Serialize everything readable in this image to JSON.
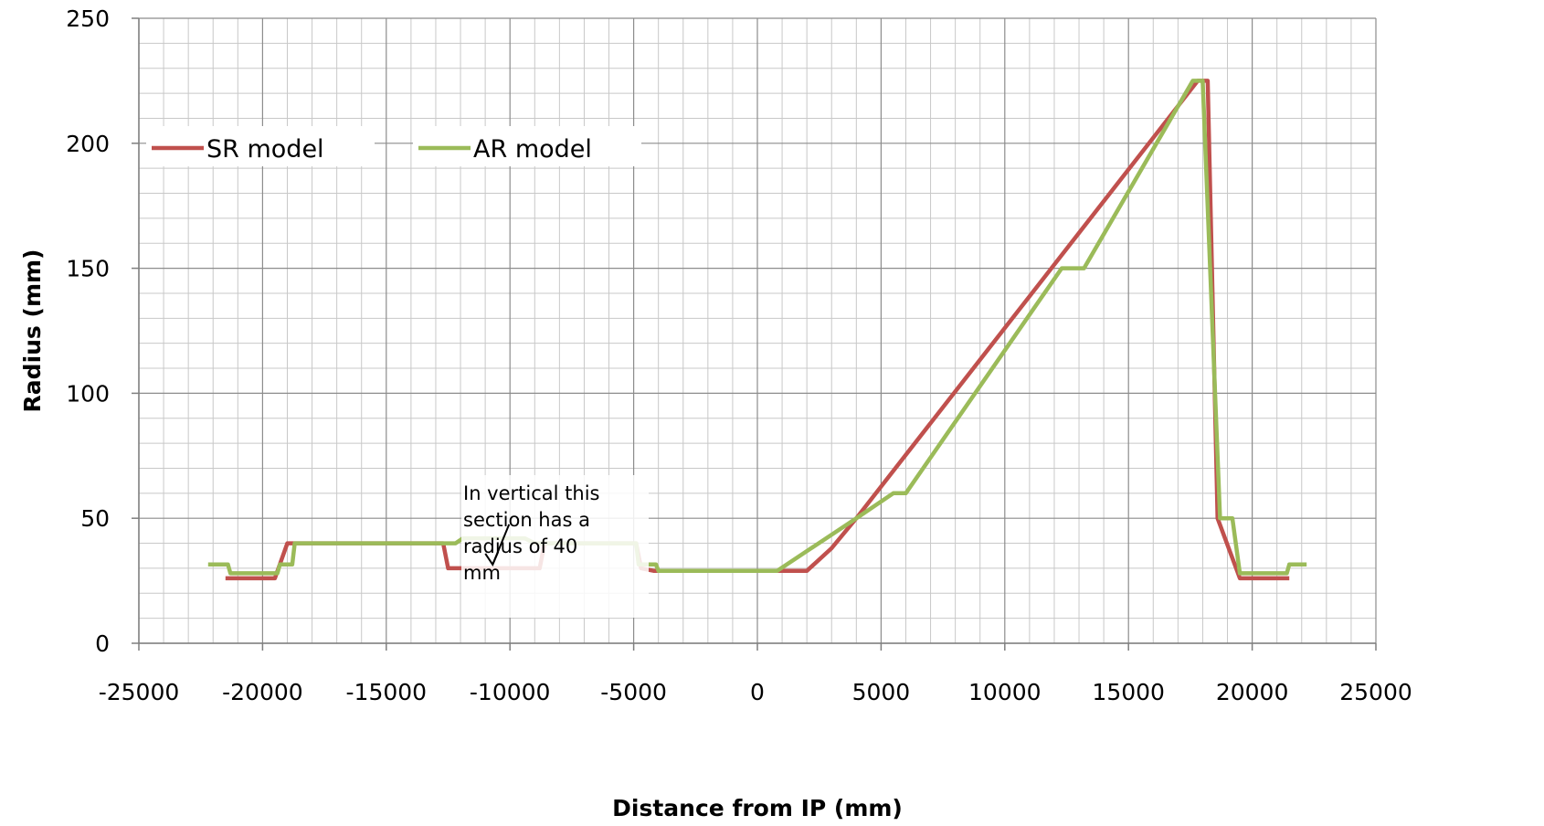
{
  "chart_data": {
    "type": "line",
    "title": "",
    "xlabel": "Distance from IP (mm)",
    "ylabel": "Radius (mm)",
    "xlim": [
      -25000,
      25000
    ],
    "ylim": [
      0,
      250
    ],
    "x_ticks": [
      -25000,
      -20000,
      -15000,
      -10000,
      -5000,
      0,
      5000,
      10000,
      15000,
      20000,
      25000
    ],
    "y_ticks": [
      0,
      50,
      100,
      150,
      200,
      250
    ],
    "x_ticks_labels": [
      "-25000",
      "-20000",
      "-15000",
      "-10000",
      "-5000",
      "0",
      "5000",
      "10000",
      "15000",
      "20000",
      "25000"
    ],
    "y_ticks_labels": [
      "0",
      "50",
      "100",
      "150",
      "200",
      "250"
    ],
    "grid": true,
    "legend_position": "top-left",
    "series": [
      {
        "name": "SR model",
        "color": "#c0504d",
        "points": [
          [
            -21500,
            26
          ],
          [
            -19500,
            26
          ],
          [
            -19000,
            40
          ],
          [
            -12700,
            40
          ],
          [
            -12500,
            30
          ],
          [
            -8800,
            30
          ],
          [
            -8600,
            40
          ],
          [
            -4900,
            40
          ],
          [
            -4700,
            30
          ],
          [
            -4200,
            29
          ],
          [
            2000,
            29
          ],
          [
            3000,
            38
          ],
          [
            4000,
            50
          ],
          [
            17800,
            225
          ],
          [
            18200,
            225
          ],
          [
            18600,
            50
          ],
          [
            19500,
            26
          ],
          [
            21500,
            26
          ]
        ]
      },
      {
        "name": "AR model",
        "color": "#9bbb59",
        "points": [
          [
            -22200,
            31.5
          ],
          [
            -21400,
            31.5
          ],
          [
            -21300,
            28
          ],
          [
            -19400,
            28
          ],
          [
            -19300,
            31.5
          ],
          [
            -18800,
            31.5
          ],
          [
            -18700,
            40
          ],
          [
            -12200,
            40
          ],
          [
            -11900,
            42
          ],
          [
            -9400,
            42
          ],
          [
            -9000,
            40
          ],
          [
            -4900,
            40
          ],
          [
            -4800,
            31.5
          ],
          [
            -4100,
            31.5
          ],
          [
            -4000,
            29
          ],
          [
            800,
            29
          ],
          [
            4000,
            50
          ],
          [
            5500,
            60
          ],
          [
            6000,
            60
          ],
          [
            12300,
            150
          ],
          [
            13200,
            150
          ],
          [
            17600,
            225
          ],
          [
            18000,
            225
          ],
          [
            18700,
            50
          ],
          [
            19200,
            50
          ],
          [
            19500,
            28
          ],
          [
            21400,
            28
          ],
          [
            21500,
            31.5
          ],
          [
            22200,
            31.5
          ]
        ]
      }
    ],
    "annotations": [
      {
        "lines": [
          "In vertical this",
          "section has a",
          "radius of 40",
          "mm"
        ],
        "arrow_target": [
          -10700,
          30
        ]
      }
    ]
  }
}
